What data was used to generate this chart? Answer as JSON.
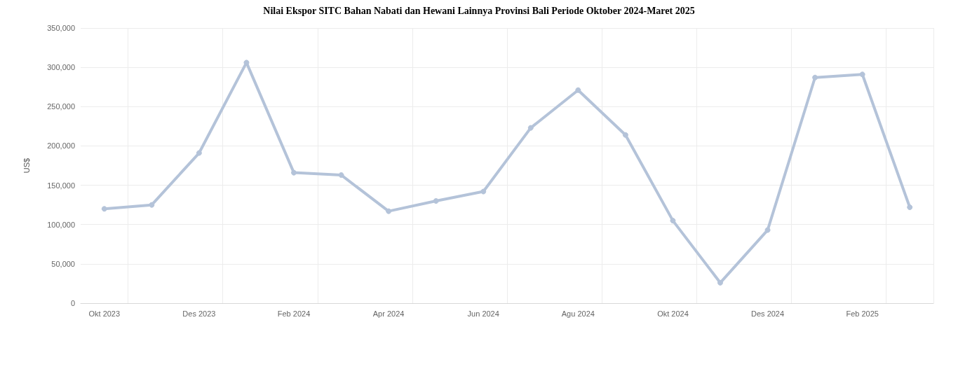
{
  "chart_data": {
    "type": "line",
    "title": "Nilai Ekspor SITC Bahan Nabati dan Hewani Lainnya Provinsi Bali Periode Oktober 2024-Maret 2025",
    "ylabel": "US$",
    "categories": [
      "Okt 2023",
      null,
      "Des 2023",
      null,
      "Feb 2024",
      null,
      "Apr 2024",
      null,
      "Jun 2024",
      null,
      "Agu 2024",
      null,
      "Okt 2024",
      null,
      "Des 2024",
      null,
      "Feb 2025",
      null
    ],
    "series": [
      {
        "color": "#b4c3d9",
        "values": [
          120000,
          125000,
          191000,
          306000,
          166000,
          163000,
          117000,
          130000,
          142000,
          223000,
          271000,
          214000,
          105000,
          26000,
          93000,
          287000,
          291000,
          122000
        ]
      }
    ],
    "ylim": [
      0,
      350000
    ],
    "yticks": [
      0,
      {
        "value": 50000,
        "label": "50,000"
      },
      {
        "value": 100000,
        "label": "100,000"
      },
      {
        "value": 150000,
        "label": "150,000"
      },
      {
        "value": 200000,
        "label": "200,000"
      },
      {
        "value": 250000,
        "label": "250,000"
      },
      {
        "value": 300000,
        "label": "300,000"
      },
      {
        "value": 350000,
        "label": "350,000"
      }
    ],
    "grid": true,
    "marker": "circle",
    "line_style": "solid"
  }
}
